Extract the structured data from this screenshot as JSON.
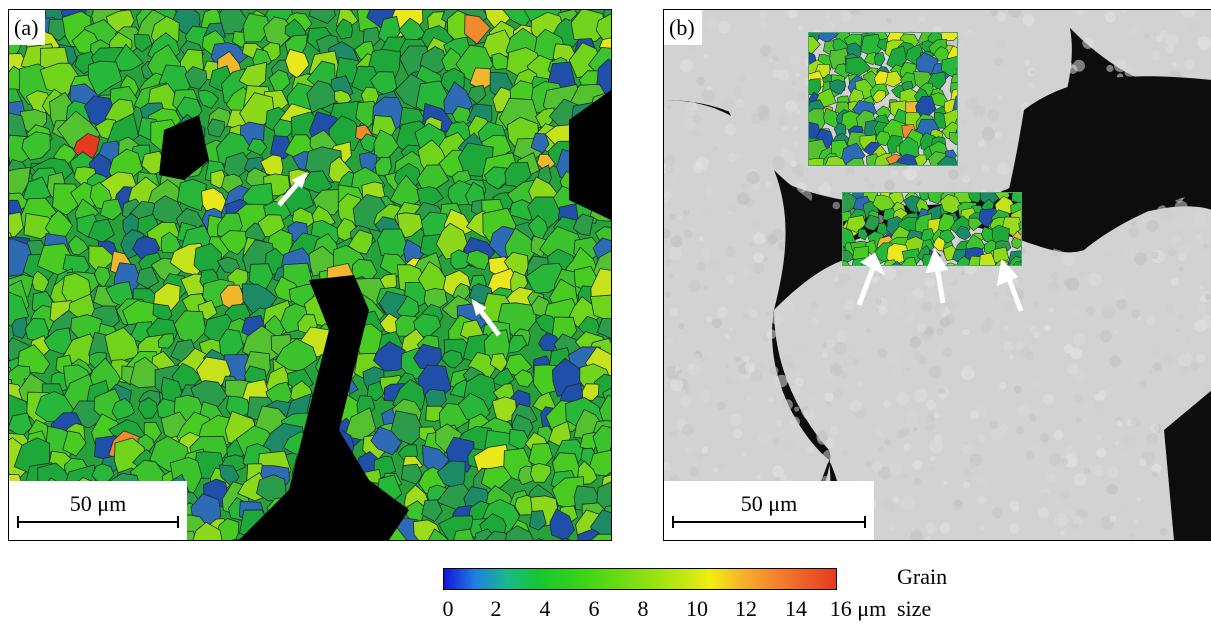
{
  "panels": {
    "a": {
      "label": "(a)",
      "scale": "50 μm"
    },
    "b": {
      "label": "(b)",
      "scale": "50 μm"
    }
  },
  "colorbar": {
    "ticks": [
      "0",
      "2",
      "4",
      "6",
      "8",
      "10",
      "12",
      "14",
      "16 μm"
    ],
    "title_line1": "Grain",
    "title_line2": "size",
    "range": [
      0,
      16
    ],
    "colors": [
      "#1515d8",
      "#19b98c",
      "#3bd615",
      "#f1ee10",
      "#e63a20"
    ]
  }
}
